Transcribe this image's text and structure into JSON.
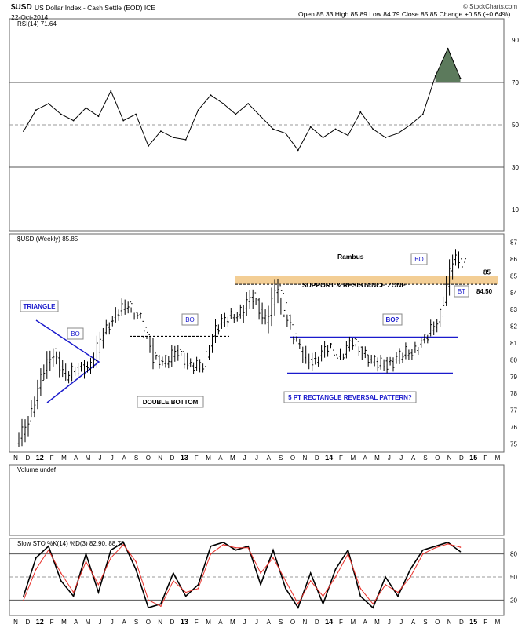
{
  "header": {
    "symbol": "$USD",
    "name": "US Dollar Index - Cash Settle (EOD) ICE",
    "date": "22-Oct-2014",
    "quote": "Open 85.33  High 85.89  Low 84.79  Close 85.85  Change +0.55 (+0.64%)",
    "attribution": "© StockCharts.com"
  },
  "chart_data": [
    {
      "type": "line",
      "title": "RSI(14) 71.64",
      "ylim": [
        0,
        100
      ],
      "yticks": [
        10,
        30,
        50,
        70,
        90
      ],
      "reference_lines": [
        30,
        50,
        70
      ],
      "x": [
        "2011-11",
        "2011-12",
        "2012-01",
        "2012-02",
        "2012-03",
        "2012-04",
        "2012-05",
        "2012-06",
        "2012-07",
        "2012-08",
        "2012-09",
        "2012-10",
        "2012-11",
        "2012-12",
        "2013-01",
        "2013-02",
        "2013-03",
        "2013-04",
        "2013-05",
        "2013-06",
        "2013-07",
        "2013-08",
        "2013-09",
        "2013-10",
        "2013-11",
        "2013-12",
        "2014-01",
        "2014-02",
        "2014-03",
        "2014-04",
        "2014-05",
        "2014-06",
        "2014-07",
        "2014-08",
        "2014-09",
        "2014-10"
      ],
      "values": [
        47,
        57,
        60,
        55,
        52,
        58,
        54,
        66,
        52,
        55,
        40,
        47,
        44,
        43,
        57,
        64,
        60,
        55,
        60,
        54,
        48,
        46,
        38,
        49,
        44,
        48,
        45,
        56,
        48,
        44,
        46,
        50,
        55,
        73,
        86,
        72
      ]
    },
    {
      "type": "ohlc",
      "title": "$USD (Weekly) 85.85",
      "ylim": [
        74.5,
        87.5
      ],
      "yticks": [
        75,
        76,
        77,
        78,
        79,
        80,
        81,
        82,
        83,
        84,
        85,
        86,
        87
      ],
      "x_labels": [
        "N",
        "D",
        "12",
        "F",
        "M",
        "A",
        "M",
        "J",
        "J",
        "A",
        "S",
        "O",
        "N",
        "D",
        "13",
        "F",
        "M",
        "A",
        "M",
        "J",
        "J",
        "A",
        "S",
        "O",
        "N",
        "D",
        "14",
        "F",
        "M",
        "A",
        "M",
        "J",
        "J",
        "A",
        "S",
        "O",
        "N",
        "D",
        "15",
        "F",
        "M"
      ],
      "x": [
        "2011-11",
        "2011-12",
        "2012-01",
        "2012-02",
        "2012-03",
        "2012-04",
        "2012-05",
        "2012-06",
        "2012-07",
        "2012-08",
        "2012-09",
        "2012-10",
        "2012-11",
        "2012-12",
        "2013-01",
        "2013-02",
        "2013-03",
        "2013-04",
        "2013-05",
        "2013-06",
        "2013-07",
        "2013-08",
        "2013-09",
        "2013-10",
        "2013-11",
        "2013-12",
        "2014-01",
        "2014-02",
        "2014-03",
        "2014-04",
        "2014-05",
        "2014-06",
        "2014-07",
        "2014-08",
        "2014-09",
        "2014-10"
      ],
      "close": [
        76.5,
        78.8,
        80.5,
        79.0,
        79.5,
        79.5,
        81.8,
        82.5,
        83.5,
        82.4,
        80.2,
        79.9,
        80.6,
        79.5,
        79.8,
        81.7,
        82.6,
        82.8,
        83.8,
        82.3,
        84.5,
        81.9,
        80.3,
        79.8,
        80.8,
        80.2,
        81.1,
        80.3,
        79.8,
        79.7,
        80.4,
        80.6,
        81.4,
        82.8,
        85.9,
        85.85
      ],
      "high": [
        77.5,
        79.5,
        81.8,
        80.5,
        80.0,
        80.3,
        82.0,
        83.2,
        84.1,
        82.8,
        81.4,
        80.3,
        81.3,
        80.4,
        80.3,
        82.4,
        83.1,
        83.3,
        84.6,
        83.7,
        84.8,
        82.7,
        81.4,
        81.2,
        81.5,
        81.0,
        81.4,
        80.8,
        80.3,
        80.3,
        80.7,
        81.2,
        81.5,
        83.1,
        86.3,
        86.9
      ],
      "low": [
        74.8,
        76.6,
        78.8,
        78.0,
        78.6,
        78.7,
        79.5,
        81.5,
        82.3,
        81.5,
        79.1,
        78.9,
        79.5,
        79.0,
        79.1,
        80.0,
        81.5,
        82.0,
        82.0,
        81.5,
        81.2,
        80.4,
        79.8,
        79.1,
        79.6,
        79.8,
        80.0,
        79.3,
        78.9,
        79.0,
        79.3,
        79.8,
        80.3,
        81.4,
        83.2,
        84.8
      ],
      "horizontal_lines": [
        {
          "value": 85.0,
          "label": "85"
        },
        {
          "value": 84.5,
          "label": "84.50"
        },
        {
          "value": 81.4
        },
        {
          "value": 81.35
        },
        {
          "value": 79.2
        }
      ],
      "annotations": [
        "Rambus",
        "SUPPORT & RESISTANCE ZONE",
        "TRIANGLE",
        "BO",
        "BO",
        "BO?",
        "BT",
        "DOUBLE BOTTOM",
        "5 PT RECTANGLE REVERSAL PATTERN?"
      ]
    },
    {
      "type": "bar",
      "title": "Volume undef"
    },
    {
      "type": "line",
      "title": "Slow STO %K(14) %D(3) 82.90, 88.73",
      "ylim": [
        0,
        100
      ],
      "yticks": [
        20,
        50,
        80
      ],
      "reference_lines": [
        20,
        50,
        80
      ],
      "x_labels": [
        "N",
        "D",
        "12",
        "F",
        "M",
        "A",
        "M",
        "J",
        "J",
        "A",
        "S",
        "O",
        "N",
        "D",
        "13",
        "F",
        "M",
        "A",
        "M",
        "J",
        "J",
        "A",
        "S",
        "O",
        "N",
        "D",
        "14",
        "F",
        "M",
        "A",
        "M",
        "J",
        "J",
        "A",
        "S",
        "O",
        "N",
        "D",
        "15",
        "F",
        "M"
      ],
      "series": [
        {
          "name": "%K",
          "color": "#000000",
          "values": [
            25,
            75,
            90,
            45,
            25,
            80,
            30,
            85,
            95,
            60,
            10,
            15,
            55,
            25,
            40,
            90,
            95,
            85,
            90,
            40,
            85,
            35,
            10,
            55,
            15,
            60,
            85,
            25,
            10,
            50,
            25,
            60,
            85,
            90,
            95,
            82.9
          ]
        },
        {
          "name": "%D",
          "color": "#e8302a",
          "values": [
            20,
            60,
            85,
            55,
            30,
            70,
            40,
            75,
            92,
            70,
            20,
            12,
            45,
            30,
            35,
            80,
            92,
            88,
            88,
            55,
            75,
            45,
            15,
            45,
            25,
            50,
            80,
            35,
            15,
            40,
            30,
            50,
            80,
            88,
            93,
            88.73
          ]
        }
      ]
    }
  ]
}
